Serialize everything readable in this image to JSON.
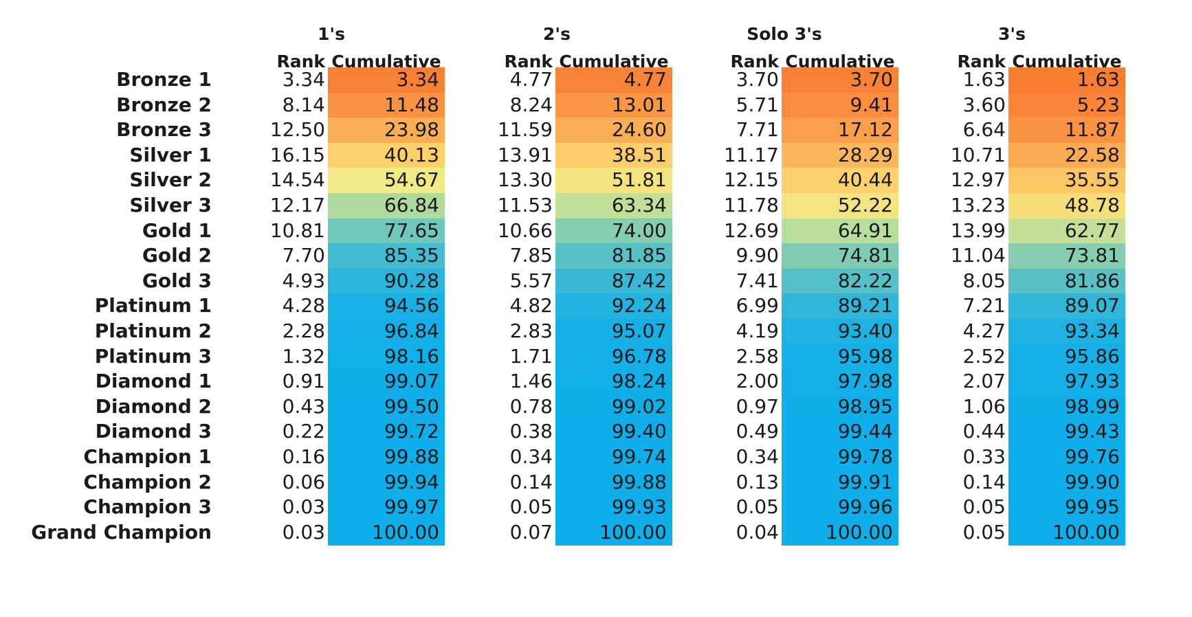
{
  "chart_data": {
    "type": "table",
    "row_labels": [
      "Bronze 1",
      "Bronze 2",
      "Bronze 3",
      "Silver 1",
      "Silver 2",
      "Silver 3",
      "Gold 1",
      "Gold 2",
      "Gold 3",
      "Platinum 1",
      "Platinum 2",
      "Platinum 3",
      "Diamond 1",
      "Diamond 2",
      "Diamond 3",
      "Champion 1",
      "Champion 2",
      "Champion 3",
      "Grand Champion"
    ],
    "column_headers": [
      "Rank",
      "Cumulative"
    ],
    "groups": [
      {
        "name": "1's",
        "rank": [
          "3.34",
          "8.14",
          "12.50",
          "16.15",
          "14.54",
          "12.17",
          "10.81",
          "7.70",
          "4.93",
          "4.28",
          "2.28",
          "1.32",
          "0.91",
          "0.43",
          "0.22",
          "0.16",
          "0.06",
          "0.03",
          "0.03"
        ],
        "cumulative": [
          "3.34",
          "11.48",
          "23.98",
          "40.13",
          "54.67",
          "66.84",
          "77.65",
          "85.35",
          "90.28",
          "94.56",
          "96.84",
          "98.16",
          "99.07",
          "99.50",
          "99.72",
          "99.88",
          "99.94",
          "99.97",
          "100.00"
        ]
      },
      {
        "name": "2's",
        "rank": [
          "4.77",
          "8.24",
          "11.59",
          "13.91",
          "13.30",
          "11.53",
          "10.66",
          "7.85",
          "5.57",
          "4.82",
          "2.83",
          "1.71",
          "1.46",
          "0.78",
          "0.38",
          "0.34",
          "0.14",
          "0.05",
          "0.07"
        ],
        "cumulative": [
          "4.77",
          "13.01",
          "24.60",
          "38.51",
          "51.81",
          "63.34",
          "74.00",
          "81.85",
          "87.42",
          "92.24",
          "95.07",
          "96.78",
          "98.24",
          "99.02",
          "99.40",
          "99.74",
          "99.88",
          "99.93",
          "100.00"
        ]
      },
      {
        "name": "Solo 3's",
        "rank": [
          "3.70",
          "5.71",
          "7.71",
          "11.17",
          "12.15",
          "11.78",
          "12.69",
          "9.90",
          "7.41",
          "6.99",
          "4.19",
          "2.58",
          "2.00",
          "0.97",
          "0.49",
          "0.34",
          "0.13",
          "0.05",
          "0.04"
        ],
        "cumulative": [
          "3.70",
          "9.41",
          "17.12",
          "28.29",
          "40.44",
          "52.22",
          "64.91",
          "74.81",
          "82.22",
          "89.21",
          "93.40",
          "95.98",
          "97.98",
          "98.95",
          "99.44",
          "99.78",
          "99.91",
          "99.96",
          "100.00"
        ]
      },
      {
        "name": "3's",
        "rank": [
          "1.63",
          "3.60",
          "6.64",
          "10.71",
          "12.97",
          "13.23",
          "13.99",
          "11.04",
          "8.05",
          "7.21",
          "4.27",
          "2.52",
          "2.07",
          "1.06",
          "0.44",
          "0.33",
          "0.14",
          "0.05",
          "0.05"
        ],
        "cumulative": [
          "1.63",
          "5.23",
          "11.87",
          "22.58",
          "35.55",
          "48.78",
          "62.77",
          "73.81",
          "81.86",
          "89.07",
          "93.34",
          "95.86",
          "97.93",
          "98.99",
          "99.43",
          "99.76",
          "99.90",
          "99.95",
          "100.00"
        ]
      }
    ],
    "colors": {
      "scale_stops": [
        "#f97a30",
        "#fdd06c",
        "#f1ea86",
        "#b8dd9a",
        "#7fccb2",
        "#3fbad2",
        "#17b0e6",
        "#0eaeea"
      ],
      "scale_points": [
        0,
        40,
        55,
        65,
        75,
        86,
        95,
        100
      ]
    }
  }
}
